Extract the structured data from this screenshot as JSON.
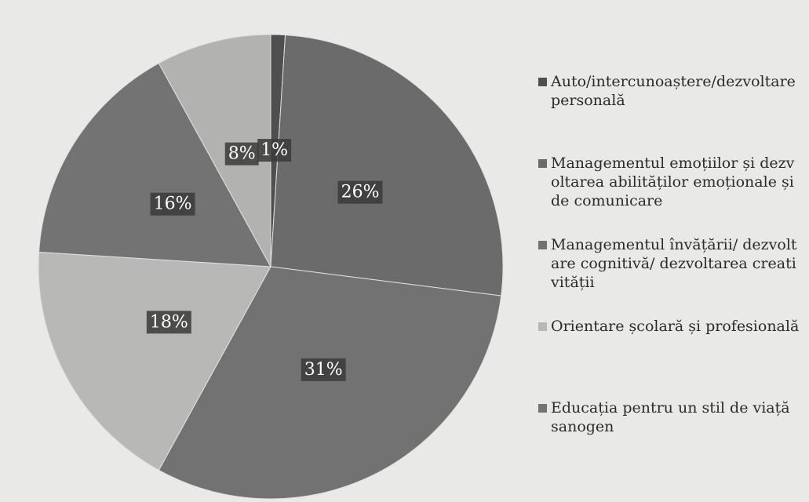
{
  "chart_data": {
    "type": "pie",
    "categories": [
      "Auto/intercunoaștere/dezvoltare personală",
      "Managementul emoțiilor și dezvoltarea abilităților emoționale și de comunicare",
      "Managementul învățării/ dezvoltare cognitivă/ dezvoltarea creativității",
      "Orientare școlară și profesională",
      "Educația pentru un stil de viață sanogen",
      null
    ],
    "values": [
      1,
      26,
      31,
      18,
      16,
      8
    ],
    "value_labels": [
      "1%",
      "26%",
      "31%",
      "18%",
      "16%",
      "8%"
    ],
    "colors": [
      "#4f4f4f",
      "#6b6b6b",
      "#727272",
      "#b8b8b6",
      "#737373",
      "#b2b2b0"
    ],
    "legend": "right"
  }
}
